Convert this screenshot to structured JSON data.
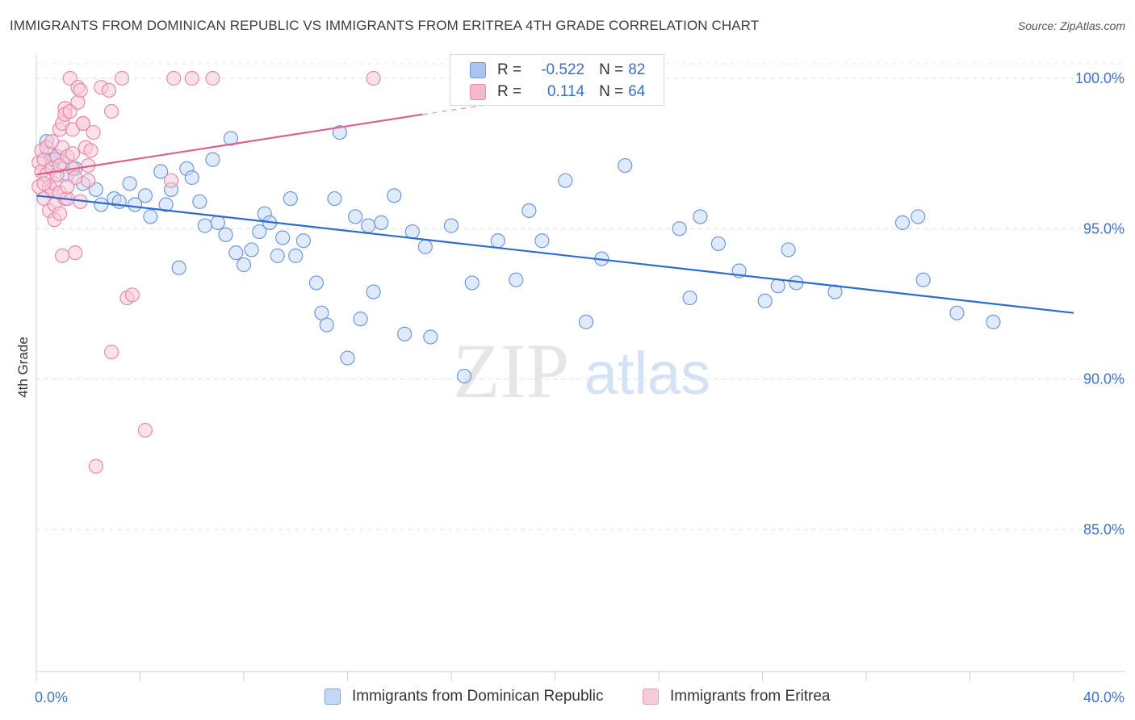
{
  "title": "IMMIGRANTS FROM DOMINICAN REPUBLIC VS IMMIGRANTS FROM ERITREA 4TH GRADE CORRELATION CHART",
  "source": "Source: ZipAtlas.com",
  "watermark": {
    "zip": "ZIP",
    "atlas": "atlas"
  },
  "legend": {
    "rows": [
      {
        "r_label": "R =",
        "r_value": "-0.522",
        "n_label": "N =",
        "n_value": "82",
        "color": "#a9c4ee",
        "border": "#6f98d8"
      },
      {
        "r_label": "R =",
        "r_value": "0.114",
        "n_label": "N =",
        "n_value": "64",
        "color": "#f6b8cc",
        "border": "#e889a8"
      }
    ]
  },
  "bottom_legend": [
    {
      "label": "Immigrants from Dominican Republic",
      "color": "#c5d8f5",
      "border": "#7ea2db"
    },
    {
      "label": "Immigrants from Eritrea",
      "color": "#f8cbd9",
      "border": "#e99bb5"
    }
  ],
  "chart_data": {
    "type": "scatter",
    "title": "IMMIGRANTS FROM DOMINICAN REPUBLIC VS IMMIGRANTS FROM ERITREA 4TH GRADE CORRELATION CHART",
    "xlabel": "",
    "ylabel": "4th Grade",
    "xlim": [
      0,
      40
    ],
    "ylim": [
      80.3,
      100.5
    ],
    "x_tick_labels": [
      "0.0%",
      "40.0%"
    ],
    "y_ticks": [
      85,
      90,
      95,
      100
    ],
    "y_tick_labels": [
      "85.0%",
      "90.0%",
      "95.0%",
      "100.0%"
    ],
    "grid": true,
    "legend_position": "top-center",
    "series": [
      {
        "name": "Immigrants from Dominican Republic",
        "color": "#6f98d8",
        "fill": "#c5d8f5",
        "trend": {
          "x0": 0.0,
          "y0": 96.1,
          "x1": 40.0,
          "y1": 92.2,
          "color": "#2c6bd1"
        },
        "points": [
          [
            0.4,
            97.9
          ],
          [
            0.5,
            97.5
          ],
          [
            0.6,
            97.3
          ],
          [
            0.8,
            97.4
          ],
          [
            1.0,
            97.2
          ],
          [
            1.2,
            96.8
          ],
          [
            1.5,
            97.0
          ],
          [
            1.8,
            96.5
          ],
          [
            2.3,
            96.3
          ],
          [
            2.5,
            95.8
          ],
          [
            3.0,
            96.0
          ],
          [
            3.2,
            95.9
          ],
          [
            3.6,
            96.5
          ],
          [
            3.8,
            95.8
          ],
          [
            4.2,
            96.1
          ],
          [
            4.4,
            95.4
          ],
          [
            4.8,
            96.9
          ],
          [
            5.0,
            95.8
          ],
          [
            5.2,
            96.3
          ],
          [
            5.5,
            93.7
          ],
          [
            5.8,
            97.0
          ],
          [
            6.0,
            96.7
          ],
          [
            6.3,
            95.9
          ],
          [
            6.5,
            95.1
          ],
          [
            6.8,
            97.3
          ],
          [
            7.0,
            95.2
          ],
          [
            7.3,
            94.8
          ],
          [
            7.5,
            98.0
          ],
          [
            7.7,
            94.2
          ],
          [
            8.0,
            93.8
          ],
          [
            8.3,
            94.3
          ],
          [
            8.6,
            94.9
          ],
          [
            8.8,
            95.5
          ],
          [
            9.0,
            95.2
          ],
          [
            9.3,
            94.1
          ],
          [
            9.5,
            94.7
          ],
          [
            9.8,
            96.0
          ],
          [
            10.0,
            94.1
          ],
          [
            10.3,
            94.6
          ],
          [
            10.8,
            93.2
          ],
          [
            11.0,
            92.2
          ],
          [
            11.2,
            91.8
          ],
          [
            11.5,
            96.0
          ],
          [
            11.7,
            98.2
          ],
          [
            12.0,
            90.7
          ],
          [
            12.3,
            95.4
          ],
          [
            12.5,
            92.0
          ],
          [
            12.8,
            95.1
          ],
          [
            13.0,
            92.9
          ],
          [
            13.3,
            95.2
          ],
          [
            13.8,
            96.1
          ],
          [
            14.2,
            91.5
          ],
          [
            14.5,
            94.9
          ],
          [
            15.0,
            94.4
          ],
          [
            15.2,
            91.4
          ],
          [
            16.0,
            95.1
          ],
          [
            16.5,
            90.1
          ],
          [
            16.8,
            93.2
          ],
          [
            17.8,
            94.6
          ],
          [
            18.5,
            93.3
          ],
          [
            19.0,
            95.6
          ],
          [
            19.5,
            94.6
          ],
          [
            20.4,
            96.6
          ],
          [
            21.2,
            91.9
          ],
          [
            21.8,
            94.0
          ],
          [
            22.7,
            97.1
          ],
          [
            24.8,
            95.0
          ],
          [
            25.2,
            92.7
          ],
          [
            25.6,
            95.4
          ],
          [
            26.3,
            94.5
          ],
          [
            27.1,
            93.6
          ],
          [
            28.1,
            92.6
          ],
          [
            28.6,
            93.1
          ],
          [
            29.0,
            94.3
          ],
          [
            29.3,
            93.2
          ],
          [
            30.8,
            92.9
          ],
          [
            33.4,
            95.2
          ],
          [
            34.0,
            95.4
          ],
          [
            34.2,
            93.3
          ],
          [
            35.5,
            92.2
          ],
          [
            36.9,
            91.9
          ],
          [
            0.7,
            97.3
          ]
        ]
      },
      {
        "name": "Immigrants from Eritrea",
        "color": "#e889a8",
        "fill": "#f8cbd9",
        "trend": {
          "x0": 0.0,
          "y0": 96.8,
          "x1": 14.9,
          "y1": 98.8,
          "color": "#e0608c",
          "dash_to_x": 18.0,
          "dash_to_y": 99.2
        },
        "points": [
          [
            0.1,
            96.4
          ],
          [
            0.1,
            97.2
          ],
          [
            0.2,
            96.9
          ],
          [
            0.2,
            97.6
          ],
          [
            0.3,
            96.0
          ],
          [
            0.3,
            97.3
          ],
          [
            0.4,
            96.8
          ],
          [
            0.4,
            97.7
          ],
          [
            0.5,
            96.4
          ],
          [
            0.5,
            95.6
          ],
          [
            0.6,
            97.0
          ],
          [
            0.6,
            96.3
          ],
          [
            0.7,
            95.8
          ],
          [
            0.7,
            96.5
          ],
          [
            0.7,
            95.3
          ],
          [
            0.8,
            97.4
          ],
          [
            0.8,
            96.8
          ],
          [
            0.9,
            98.3
          ],
          [
            0.9,
            97.1
          ],
          [
            0.9,
            95.5
          ],
          [
            1.0,
            98.5
          ],
          [
            1.0,
            97.7
          ],
          [
            1.0,
            94.1
          ],
          [
            1.1,
            99.0
          ],
          [
            1.1,
            96.0
          ],
          [
            1.1,
            98.8
          ],
          [
            1.2,
            97.4
          ],
          [
            1.2,
            96.0
          ],
          [
            1.3,
            100.0
          ],
          [
            1.3,
            98.9
          ],
          [
            1.4,
            98.3
          ],
          [
            1.4,
            97.5
          ],
          [
            1.4,
            97.0
          ],
          [
            1.5,
            96.7
          ],
          [
            1.5,
            94.2
          ],
          [
            1.6,
            99.2
          ],
          [
            1.6,
            99.7
          ],
          [
            1.7,
            99.6
          ],
          [
            1.8,
            98.5
          ],
          [
            1.8,
            98.5
          ],
          [
            1.9,
            97.7
          ],
          [
            2.0,
            97.1
          ],
          [
            2.0,
            96.6
          ],
          [
            2.1,
            97.6
          ],
          [
            2.2,
            98.2
          ],
          [
            2.3,
            87.1
          ],
          [
            2.5,
            99.7
          ],
          [
            2.8,
            99.6
          ],
          [
            2.9,
            90.9
          ],
          [
            2.9,
            98.9
          ],
          [
            3.3,
            100.0
          ],
          [
            3.5,
            92.7
          ],
          [
            3.7,
            92.8
          ],
          [
            4.2,
            88.3
          ],
          [
            5.2,
            96.6
          ],
          [
            5.3,
            100.0
          ],
          [
            6.0,
            100.0
          ],
          [
            6.8,
            100.0
          ],
          [
            13.0,
            100.0
          ],
          [
            1.7,
            95.9
          ],
          [
            0.9,
            96.2
          ],
          [
            0.3,
            96.5
          ],
          [
            1.2,
            96.4
          ],
          [
            0.6,
            97.9
          ]
        ]
      }
    ]
  }
}
